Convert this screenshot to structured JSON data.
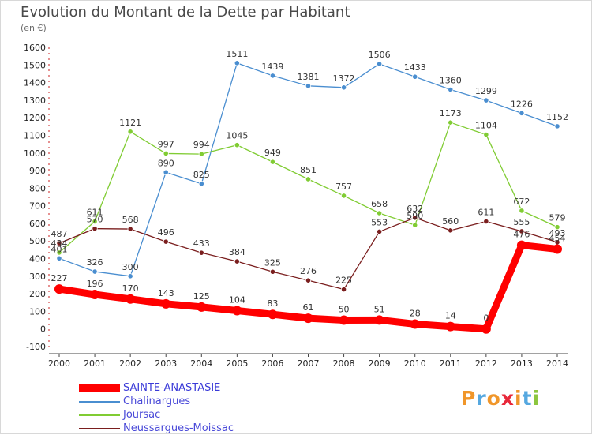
{
  "header": {
    "title": "Evolution du Montant de la Dette par Habitant",
    "unit": "(en €)"
  },
  "brand": {
    "letters": [
      "P",
      "r",
      "o",
      "x",
      "i",
      "t",
      "i"
    ],
    "colors": [
      "#f0962a",
      "#56a8e0",
      "#f0962a",
      "#e8283a",
      "#f0962a",
      "#56a8e0",
      "#8cc63e"
    ]
  },
  "chart_data": {
    "type": "line",
    "title": "Evolution du Montant de la Dette par Habitant",
    "ylabel": "(en €)",
    "x": [
      "2000",
      "2001",
      "2002",
      "2003",
      "2004",
      "2005",
      "2006",
      "2007",
      "2008",
      "2009",
      "2010",
      "2011",
      "2012",
      "2013",
      "2014"
    ],
    "ylim": [
      -100,
      1600
    ],
    "yticks": [
      -100,
      0,
      100,
      200,
      300,
      400,
      500,
      600,
      700,
      800,
      900,
      1000,
      1100,
      1200,
      1300,
      1400,
      1500,
      1600
    ],
    "grid": false,
    "legend": "bottom-left",
    "series": [
      {
        "name": "SAINTE-ANASTASIE",
        "color": "#ff0000",
        "values": [
          227,
          196,
          170,
          143,
          125,
          104,
          83,
          61,
          50,
          51,
          28,
          14,
          0,
          476,
          454
        ],
        "labels": [
          "227",
          "196",
          "170",
          "143",
          "125",
          "104",
          "83",
          "61",
          "50",
          "51",
          "28",
          "14",
          "0",
          "476",
          "454"
        ]
      },
      {
        "name": "Chalinargues",
        "color": "#4a8ed0",
        "values": [
          401,
          326,
          300,
          890,
          825,
          1511,
          1439,
          1381,
          1372,
          1506,
          1433,
          1360,
          1299,
          1226,
          1152
        ],
        "labels": [
          "401",
          "326",
          "300",
          "890",
          "825",
          "1511",
          "1439",
          "1381",
          "1372",
          "1506",
          "1433",
          "1360",
          "1299",
          "1226",
          "1152"
        ]
      },
      {
        "name": "Joursac",
        "color": "#80cc33",
        "values": [
          434,
          611,
          1121,
          997,
          994,
          1045,
          949,
          851,
          757,
          658,
          590,
          1173,
          1104,
          672,
          579
        ],
        "labels": [
          "434",
          "611",
          "1121",
          "997",
          "994",
          "1045",
          "949",
          "851",
          "757",
          "658",
          "590",
          "1173",
          "1104",
          "672",
          "579"
        ]
      },
      {
        "name": "Neussargues-Moissac",
        "color": "#7a1e1e",
        "values": [
          487,
          570,
          568,
          496,
          433,
          384,
          325,
          276,
          225,
          553,
          632,
          560,
          611,
          555,
          493
        ],
        "labels": [
          "487",
          "570",
          "568",
          "496",
          "433",
          "384",
          "325",
          "276",
          "225",
          "553",
          "632",
          "560",
          "611",
          "555",
          "493"
        ]
      }
    ]
  }
}
